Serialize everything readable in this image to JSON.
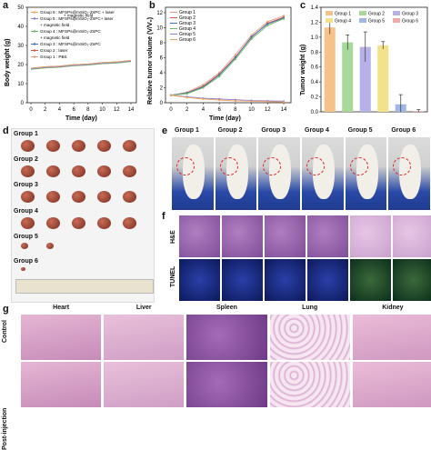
{
  "panel_letters": {
    "a": "a",
    "b": "b",
    "c": "c",
    "d": "d",
    "e": "e",
    "f": "f",
    "g": "g"
  },
  "panel_a": {
    "ylabel": "Body weight (g)",
    "xlabel": "Time (day)",
    "legend": [
      {
        "name": "Group 6 : MFSPs@mSiO₂-ZnPC + laser",
        "cont": "+ magnetic field",
        "color": "#f0a35c"
      },
      {
        "name": "Group 5 : MFSPs@mSiO₂-ZnPC+ laser",
        "cont": "",
        "color": "#8f7fd0"
      },
      {
        "name": "",
        "cont": "+ magnetic field",
        "color": ""
      },
      {
        "name": "Group 4 : MFSPs@mSiO₂-ZnPC",
        "cont": "",
        "color": "#6fb96a"
      },
      {
        "name": "",
        "cont": "+ magnetic field",
        "color": ""
      },
      {
        "name": "Group 3 : MFSPs@mSiO₂-ZnPC",
        "cont": "",
        "color": "#3f6fb5"
      },
      {
        "name": "Group 2 : laser",
        "cont": "",
        "color": "#d9534f"
      },
      {
        "name": "Group 1 : PBS",
        "cont": "",
        "color": "#e0a080"
      }
    ],
    "yticks": [
      "0",
      "10",
      "20",
      "30",
      "40",
      "50"
    ],
    "xticks": [
      "0",
      "2",
      "4",
      "6",
      "8",
      "10",
      "12",
      "14"
    ]
  },
  "chart_data": [
    {
      "type": "line",
      "panel": "b",
      "xlabel": "Time (day)",
      "ylabel": "Relative tumor volume (V/V₀)",
      "x": [
        0,
        2,
        4,
        6,
        8,
        10,
        12,
        14
      ],
      "xlim": [
        0,
        14
      ],
      "ylim": [
        0,
        12
      ],
      "yticks": [
        "0",
        "2",
        "4",
        "6",
        "8",
        "10",
        "12"
      ],
      "xticks": [
        "0",
        "2",
        "4",
        "6",
        "8",
        "10",
        "12",
        "14"
      ],
      "legend_position": "top-left",
      "series": [
        {
          "name": "Group 1",
          "color": "#e0a080",
          "values": [
            1,
            1.4,
            2.4,
            4.0,
            6.4,
            9.0,
            10.8,
            11.6
          ]
        },
        {
          "name": "Group 2",
          "color": "#d9534f",
          "values": [
            1,
            1.3,
            2.2,
            3.8,
            6.1,
            8.7,
            10.6,
            11.4
          ]
        },
        {
          "name": "Group 3",
          "color": "#3f6fb5",
          "values": [
            1,
            1.3,
            2.1,
            3.7,
            6.0,
            8.8,
            10.5,
            11.3
          ]
        },
        {
          "name": "Group 4",
          "color": "#6fb96a",
          "values": [
            1,
            1.2,
            2.0,
            3.5,
            5.8,
            8.5,
            10.3,
            11.2
          ]
        },
        {
          "name": "Group 5",
          "color": "#8f7fd0",
          "values": [
            1,
            0.8,
            0.6,
            0.5,
            0.4,
            0.3,
            0.25,
            0.2
          ]
        },
        {
          "name": "Group 6",
          "color": "#f0a35c",
          "values": [
            1,
            0.7,
            0.5,
            0.35,
            0.25,
            0.2,
            0.15,
            0.1
          ]
        }
      ]
    },
    {
      "type": "bar",
      "panel": "c",
      "ylabel": "Tumor weight (g)",
      "categories": [
        "Group 1",
        "Group 2",
        "Group 3",
        "Group 4",
        "Group 5",
        "Group 6"
      ],
      "values": [
        1.13,
        0.93,
        0.87,
        0.89,
        0.1,
        0.01
      ],
      "errors": [
        0.09,
        0.1,
        0.2,
        0.05,
        0.13,
        0.02
      ],
      "colors": [
        "#f6c28a",
        "#a9d99a",
        "#b8b0e8",
        "#f3e28a",
        "#9fb6e6",
        "#f2a9a9"
      ],
      "ylim": [
        0,
        1.4
      ],
      "yticks": [
        "0.0",
        "0.2",
        "0.4",
        "0.6",
        "0.8",
        "1.0",
        "1.2",
        "1.4"
      ],
      "legend_position": "top"
    }
  ],
  "panel_d": {
    "groups": [
      "Group 1",
      "Group 2",
      "Group 3",
      "Group 4",
      "Group 5",
      "Group 6"
    ],
    "counts": [
      5,
      5,
      5,
      5,
      2,
      1
    ]
  },
  "panel_e": {
    "groups": [
      "Group 1",
      "Group 2",
      "Group 3",
      "Group 4",
      "Group 5",
      "Group 6"
    ]
  },
  "panel_f": {
    "rows": [
      "H&E",
      "TUNEL"
    ]
  },
  "panel_g": {
    "organs": [
      "Heart",
      "Liver",
      "Spleen",
      "Lung",
      "Kidney"
    ],
    "rows": [
      "Control",
      "Post-injection"
    ]
  }
}
